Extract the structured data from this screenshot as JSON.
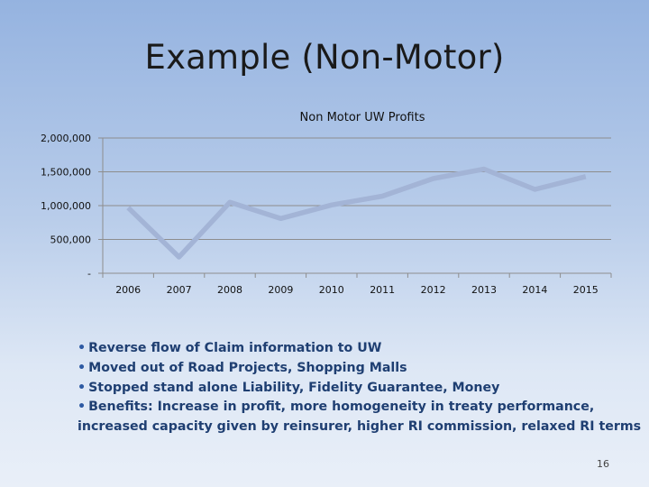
{
  "slide": {
    "title": "Example (Non-Motor)",
    "page_number": "16"
  },
  "chart_data": {
    "type": "line",
    "title": "Non Motor UW Profits",
    "xlabel": "",
    "ylabel": "",
    "categories": [
      "2006",
      "2007",
      "2008",
      "2009",
      "2010",
      "2011",
      "2012",
      "2013",
      "2014",
      "2015"
    ],
    "series": [
      {
        "name": "Non Motor UW Profits",
        "values": [
          970000,
          240000,
          1050000,
          810000,
          1010000,
          1140000,
          1400000,
          1540000,
          1240000,
          1430000
        ]
      }
    ],
    "ylim": [
      0,
      2000000
    ],
    "y_ticks": [
      0,
      500000,
      1000000,
      1500000,
      2000000
    ],
    "y_tick_labels": [
      "-",
      "500,000",
      "1,000,000",
      "1,500,000",
      "2,000,000"
    ],
    "grid": true,
    "line_color": "#a3b4d6"
  },
  "bullets": [
    "Reverse flow of Claim information to UW",
    "Moved out of Road Projects, Shopping Malls",
    "Stopped stand alone Liability, Fidelity Guarantee, Money",
    "Benefits: Increase in profit, more homogeneity in treaty performance,"
  ],
  "bullet_continuation": "increased capacity given by reinsurer, higher RI commission, relaxed RI terms",
  "bullet_marker": "•"
}
